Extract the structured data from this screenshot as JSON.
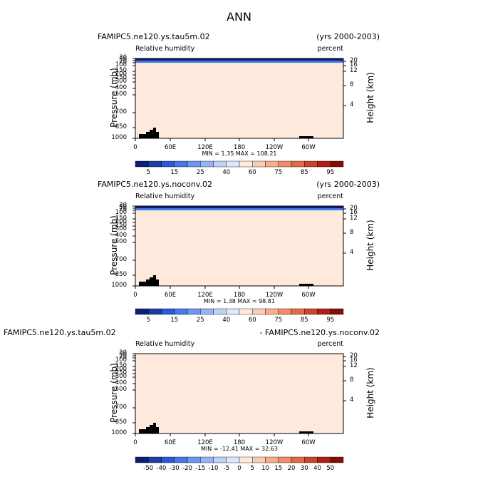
{
  "page": {
    "title": "ANN"
  },
  "colors": {
    "outline": "#000000",
    "topography": "#000000"
  },
  "chart_data": [
    {
      "type": "heatmap",
      "case_left": "FAMIPC5.ne120.ys.tau5m.02",
      "case_right": "(yrs 2000-2003)",
      "variable": "Relative humidity",
      "units": "percent",
      "xlabel": "",
      "x_ticks": [
        "0",
        "60E",
        "120E",
        "180",
        "120W",
        "60W"
      ],
      "ylabel": "Pressure (mb)",
      "y_ticks": [
        "30",
        "50",
        "70",
        "100",
        "150",
        "200",
        "250",
        "300",
        "400",
        "500",
        "700",
        "850",
        "1000"
      ],
      "ylabel_right": "Height (km)",
      "y_right_ticks": [
        "20",
        "16",
        "12",
        "8",
        "4"
      ],
      "stats": {
        "min_label": "MIN =",
        "min": "1.35",
        "max_label": "MAX =",
        "max": "108.21"
      },
      "colorbar": {
        "labels": [
          "5",
          "15",
          "25",
          "40",
          "60",
          "75",
          "85",
          "95"
        ],
        "colors": [
          "#0a1f78",
          "#1c3ea3",
          "#2a5bd4",
          "#4678e8",
          "#6e96f0",
          "#96b4f5",
          "#bcd2f8",
          "#dce8fc",
          "#ffe9dc",
          "#fbcdb4",
          "#f7ad8c",
          "#f08c66",
          "#e46a45",
          "#cf4428",
          "#b02012",
          "#860c06"
        ]
      }
    },
    {
      "type": "heatmap",
      "case_left": "FAMIPC5.ne120.ys.noconv.02",
      "case_right": "(yrs 2000-2003)",
      "variable": "Relative humidity",
      "units": "percent",
      "xlabel": "",
      "x_ticks": [
        "0",
        "60E",
        "120E",
        "180",
        "120W",
        "60W"
      ],
      "ylabel": "Pressure (mb)",
      "y_ticks": [
        "30",
        "50",
        "70",
        "100",
        "150",
        "200",
        "250",
        "300",
        "400",
        "500",
        "700",
        "850",
        "1000"
      ],
      "ylabel_right": "Height (km)",
      "y_right_ticks": [
        "20",
        "16",
        "12",
        "8",
        "4"
      ],
      "stats": {
        "min_label": "MIN =",
        "min": "1.38",
        "max_label": "MAX =",
        "max": "98.81"
      },
      "colorbar": {
        "labels": [
          "5",
          "15",
          "25",
          "40",
          "60",
          "75",
          "85",
          "95"
        ],
        "colors": [
          "#0a1f78",
          "#1c3ea3",
          "#2a5bd4",
          "#4678e8",
          "#6e96f0",
          "#96b4f5",
          "#bcd2f8",
          "#dce8fc",
          "#ffe9dc",
          "#fbcdb4",
          "#f7ad8c",
          "#f08c66",
          "#e46a45",
          "#cf4428",
          "#b02012",
          "#860c06"
        ]
      }
    },
    {
      "type": "heatmap",
      "case_left": "FAMIPC5.ne120.ys.tau5m.02",
      "case_right": "- FAMIPC5.ne120.ys.noconv.02",
      "variable": "Relative humidity",
      "units": "percent",
      "xlabel": "",
      "x_ticks": [
        "0",
        "60E",
        "120E",
        "180",
        "120W",
        "60W"
      ],
      "ylabel": "Pressure (mb)",
      "y_ticks": [
        "30",
        "50",
        "70",
        "100",
        "150",
        "200",
        "250",
        "300",
        "400",
        "500",
        "700",
        "850",
        "1000"
      ],
      "ylabel_right": "Height (km)",
      "y_right_ticks": [
        "20",
        "16",
        "12",
        "8",
        "4"
      ],
      "stats": {
        "min_label": "MIN =",
        "min": "-12.41",
        "max_label": "MAX =",
        "max": "32.63"
      },
      "colorbar": {
        "labels": [
          "-50",
          "-40",
          "-30",
          "-20",
          "-15",
          "-10",
          "-5",
          "0",
          "5",
          "10",
          "15",
          "20",
          "30",
          "40",
          "50"
        ],
        "colors": [
          "#0a1f78",
          "#1c3ea3",
          "#2a5bd4",
          "#4678e8",
          "#6e96f0",
          "#96b4f5",
          "#bcd2f8",
          "#dce8fc",
          "#ffe9dc",
          "#fbcdb4",
          "#f7ad8c",
          "#f08c66",
          "#e46a45",
          "#cf4428",
          "#b02012",
          "#860c06"
        ]
      }
    }
  ]
}
